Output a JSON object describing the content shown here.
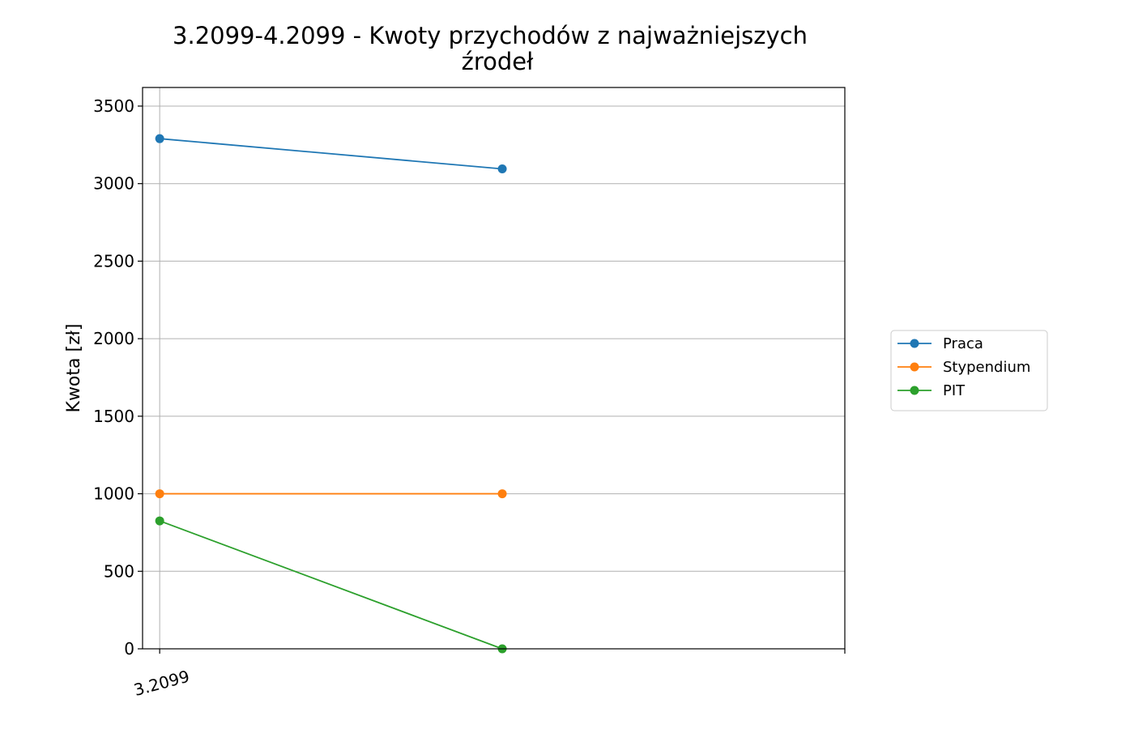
{
  "chart_data": {
    "type": "line",
    "title_lines": [
      "3.2099-4.2099 - Kwoty przychodów z najważniejszych",
      "źrodeł"
    ],
    "xlabel": "",
    "ylabel": "Kwota [zł]",
    "x": [
      0,
      1
    ],
    "x_tick_labels": [
      "3.2099"
    ],
    "xlim": [
      -0.05,
      2
    ],
    "ylim": [
      0,
      3620
    ],
    "yticks": [
      0,
      500,
      1000,
      1500,
      2000,
      2500,
      3000,
      3500
    ],
    "grid": true,
    "legend_position": "outside-right",
    "series": [
      {
        "name": "Praca",
        "color": "#1f77b4",
        "values": [
          3290,
          3095
        ]
      },
      {
        "name": "Stypendium",
        "color": "#ff7f0e",
        "values": [
          1000,
          1000
        ]
      },
      {
        "name": "PIT",
        "color": "#2ca02c",
        "values": [
          825,
          0
        ]
      }
    ]
  }
}
